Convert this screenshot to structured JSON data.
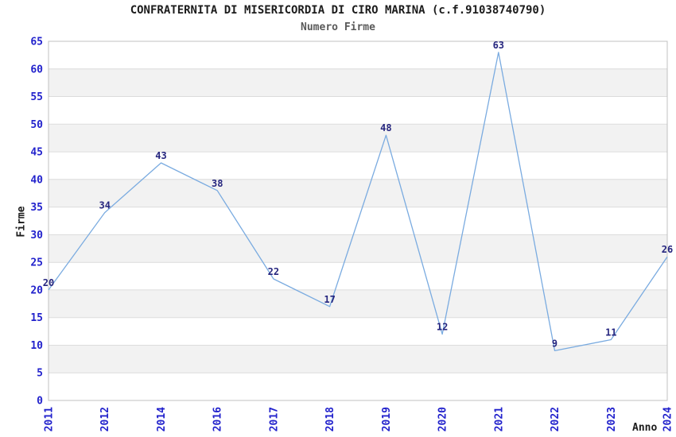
{
  "chart_data": {
    "type": "line",
    "title": "CONFRATERNITA DI MISERICORDIA DI CIRO MARINA (c.f.91038740790)",
    "subtitle": "Numero Firme",
    "xlabel": "Anno",
    "ylabel": "Firme",
    "categories": [
      "2011",
      "2012",
      "2014",
      "2016",
      "2017",
      "2018",
      "2019",
      "2020",
      "2021",
      "2022",
      "2023",
      "2024"
    ],
    "values": [
      20,
      34,
      43,
      38,
      22,
      17,
      48,
      12,
      63,
      9,
      11,
      26
    ],
    "ylim": [
      0,
      65
    ],
    "ytick_step": 5,
    "grid": "horizontal-bands",
    "legend": "none",
    "x_tick_rotation": -90,
    "colors": {
      "line": "#7aabe0",
      "tick_labels": "#2222cc",
      "data_labels": "#26267f",
      "band_fill": "#f2f2f2",
      "grid_line": "#dcdcdc",
      "plot_border": "#c0c0c0",
      "title": "#1c1c1c",
      "subtitle": "#5a5a5a",
      "background": "#ffffff"
    }
  }
}
